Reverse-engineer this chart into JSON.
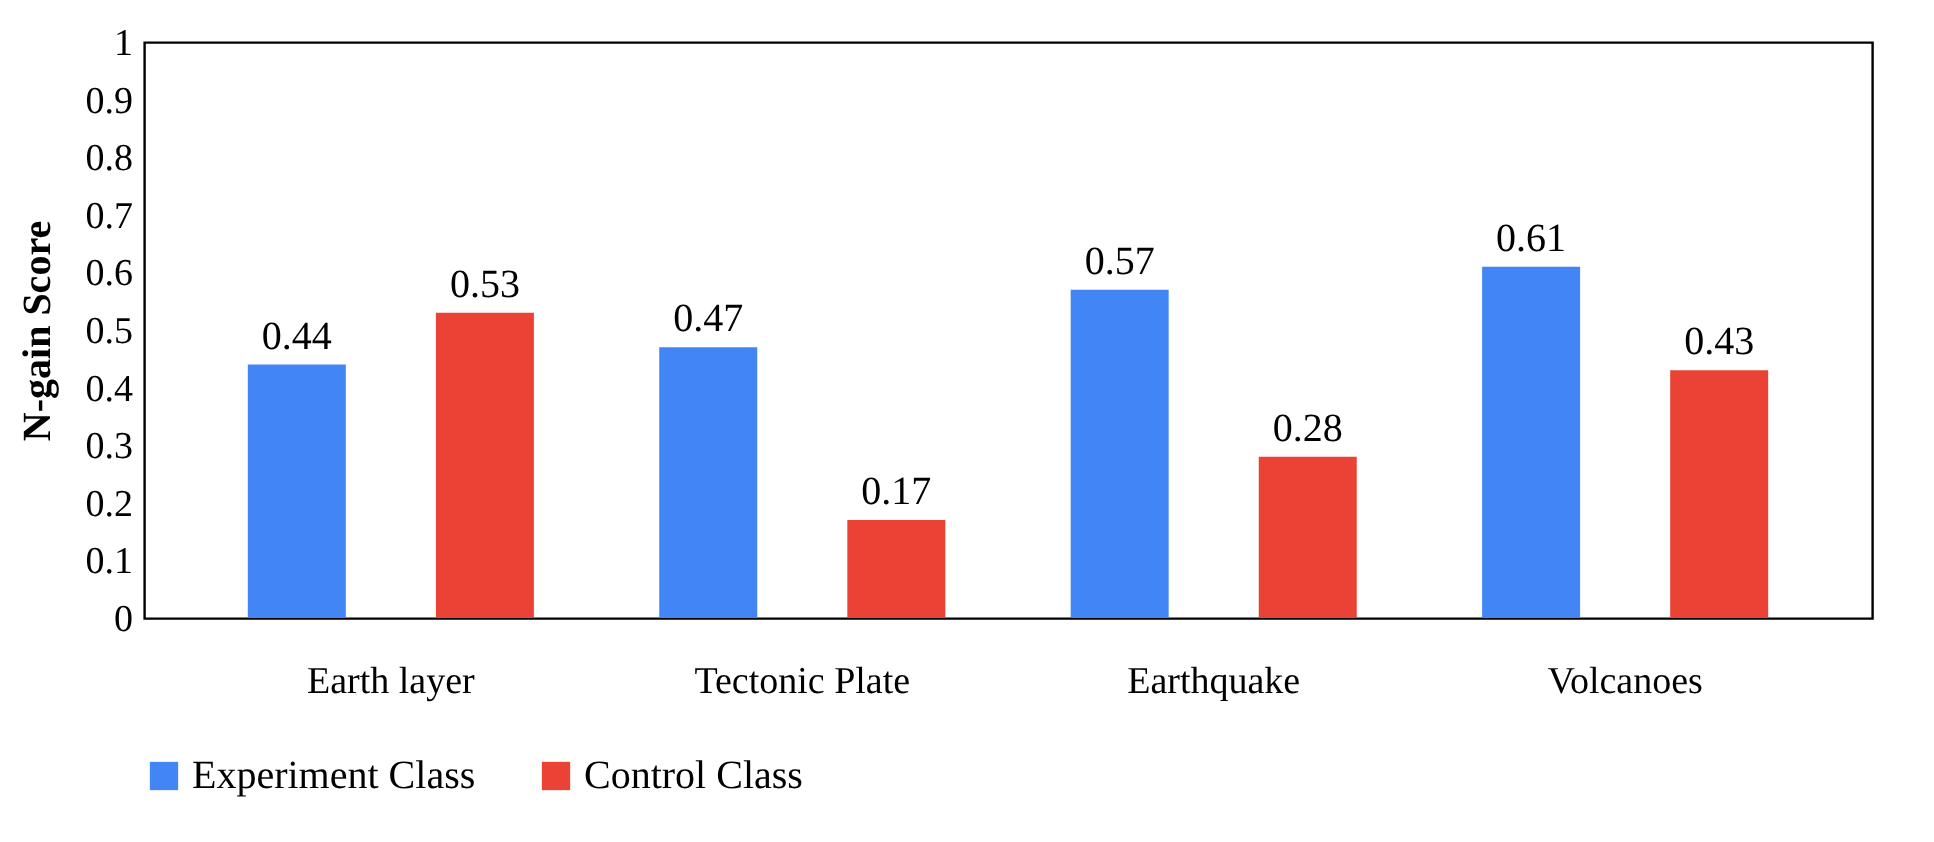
{
  "chart_data": {
    "type": "bar",
    "ylabel": "N-gain Score",
    "categories": [
      "Earth layer",
      "Tectonic Plate",
      "Earthquake",
      "Volcanoes"
    ],
    "series": [
      {
        "name": "Experiment Class",
        "color": "#4285f4",
        "values": [
          0.44,
          0.47,
          0.57,
          0.61
        ]
      },
      {
        "name": "Control Class",
        "color": "#ea4335",
        "values": [
          0.53,
          0.17,
          0.28,
          0.43
        ]
      }
    ],
    "ylim": [
      0,
      1
    ],
    "yticks": [
      0,
      0.1,
      0.2,
      0.3,
      0.4,
      0.5,
      0.6,
      0.7,
      0.8,
      0.9,
      1
    ],
    "data_labels": true,
    "legend": "bottom",
    "grid": false
  }
}
